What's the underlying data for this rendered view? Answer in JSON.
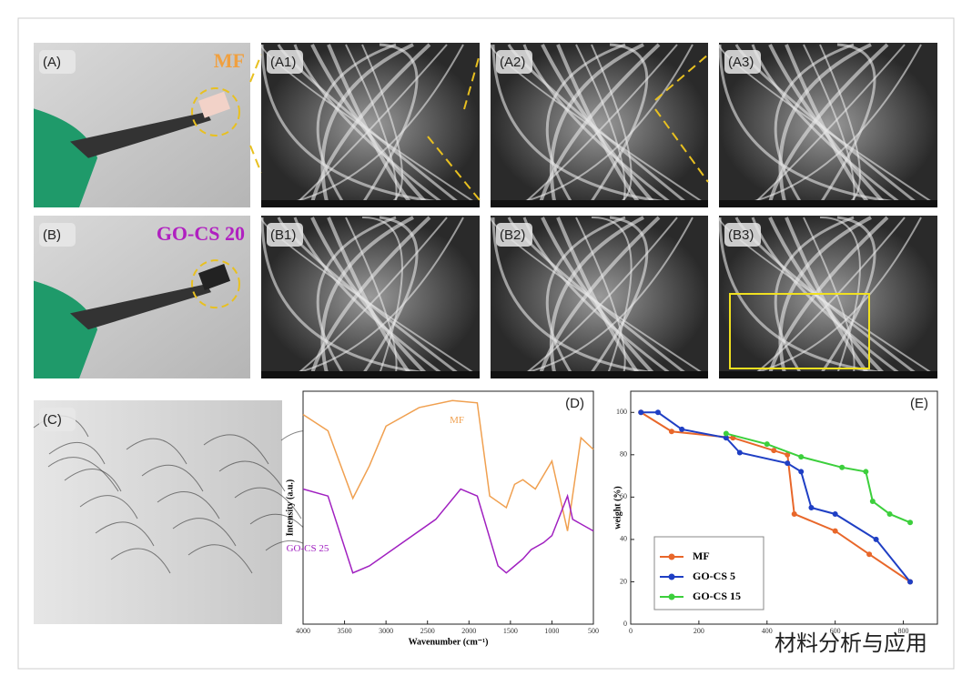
{
  "panels": [
    {
      "label": "(A)",
      "caption": "MF"
    },
    {
      "label": "(A1)"
    },
    {
      "label": "(A2)"
    },
    {
      "label": "(A3)"
    },
    {
      "label": "(B)",
      "caption": "GO-CS 20"
    },
    {
      "label": "(B1)"
    },
    {
      "label": "(B2)"
    },
    {
      "label": "(B3)"
    },
    {
      "label": "(C)"
    }
  ],
  "chart_data": [
    {
      "type": "line",
      "label": "(D)",
      "xlabel": "Wavenumber (cm⁻¹)",
      "ylabel": "Intensity (a.u.)",
      "xlim": [
        4000,
        500
      ],
      "ylim": [
        0,
        100
      ],
      "xticks": [
        4000,
        3500,
        3000,
        2500,
        2000,
        1500,
        1000,
        500
      ],
      "legend": "inline",
      "series": [
        {
          "name": "MF",
          "color": "#f0a050",
          "x": [
            4000,
            3700,
            3400,
            3200,
            3000,
            2600,
            2200,
            1900,
            1750,
            1550,
            1450,
            1350,
            1200,
            1000,
            812,
            650,
            500
          ],
          "values": [
            90,
            83,
            54,
            68,
            85,
            93,
            96,
            95,
            55,
            50,
            60,
            62,
            58,
            70,
            40,
            80,
            75
          ]
        },
        {
          "name": "GO-CS 25",
          "color": "#a020c0",
          "x": [
            4000,
            3700,
            3400,
            3200,
            2800,
            2400,
            2100,
            1900,
            1650,
            1550,
            1450,
            1350,
            1250,
            1100,
            1000,
            812,
            750,
            500
          ],
          "values": [
            58,
            55,
            22,
            25,
            35,
            45,
            58,
            55,
            25,
            22,
            25,
            28,
            32,
            35,
            38,
            55,
            45,
            40
          ]
        }
      ]
    },
    {
      "type": "line",
      "label": "(E)",
      "ylabel": "weight (%)",
      "xlim": [
        0,
        900
      ],
      "ylim": [
        0,
        110
      ],
      "xticks": [
        0,
        200,
        400,
        600,
        800
      ],
      "yticks": [
        0,
        20,
        40,
        60,
        80,
        100
      ],
      "legend": "lower left",
      "series": [
        {
          "name": "MF",
          "color": "#e8672a",
          "x": [
            30,
            120,
            300,
            420,
            460,
            480,
            600,
            700,
            820
          ],
          "values": [
            100,
            91,
            88,
            82,
            80,
            52,
            44,
            33,
            20
          ]
        },
        {
          "name": "GO-CS 5",
          "color": "#1f3fc4",
          "x": [
            30,
            80,
            150,
            280,
            320,
            460,
            500,
            530,
            600,
            720,
            820
          ],
          "values": [
            100,
            100,
            92,
            88,
            81,
            76,
            72,
            55,
            52,
            40,
            20
          ]
        },
        {
          "name": "GO-CS 15",
          "color": "#3ccf3c",
          "x": [
            280,
            400,
            500,
            620,
            690,
            710,
            760,
            820
          ],
          "values": [
            90,
            85,
            79,
            74,
            72,
            58,
            52,
            48
          ]
        }
      ]
    }
  ],
  "watermark": "材料分析与应用"
}
